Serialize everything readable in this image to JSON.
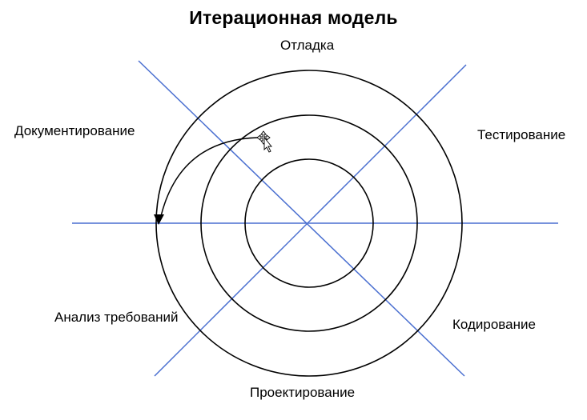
{
  "title": "Итерационная модель",
  "phases": {
    "debugging": "Отладка",
    "documentation": "Документирование",
    "testing": "Тестирование",
    "requirements_analysis": "Анализ требований",
    "coding": "Кодирование",
    "design": "Проектирование"
  },
  "colors": {
    "axis_lines": "#4a6fd0",
    "spiral": "#000000",
    "background": "#ffffff"
  },
  "icons": {
    "cursor": "move-cursor-icon",
    "arrow": "arrowhead-icon"
  }
}
